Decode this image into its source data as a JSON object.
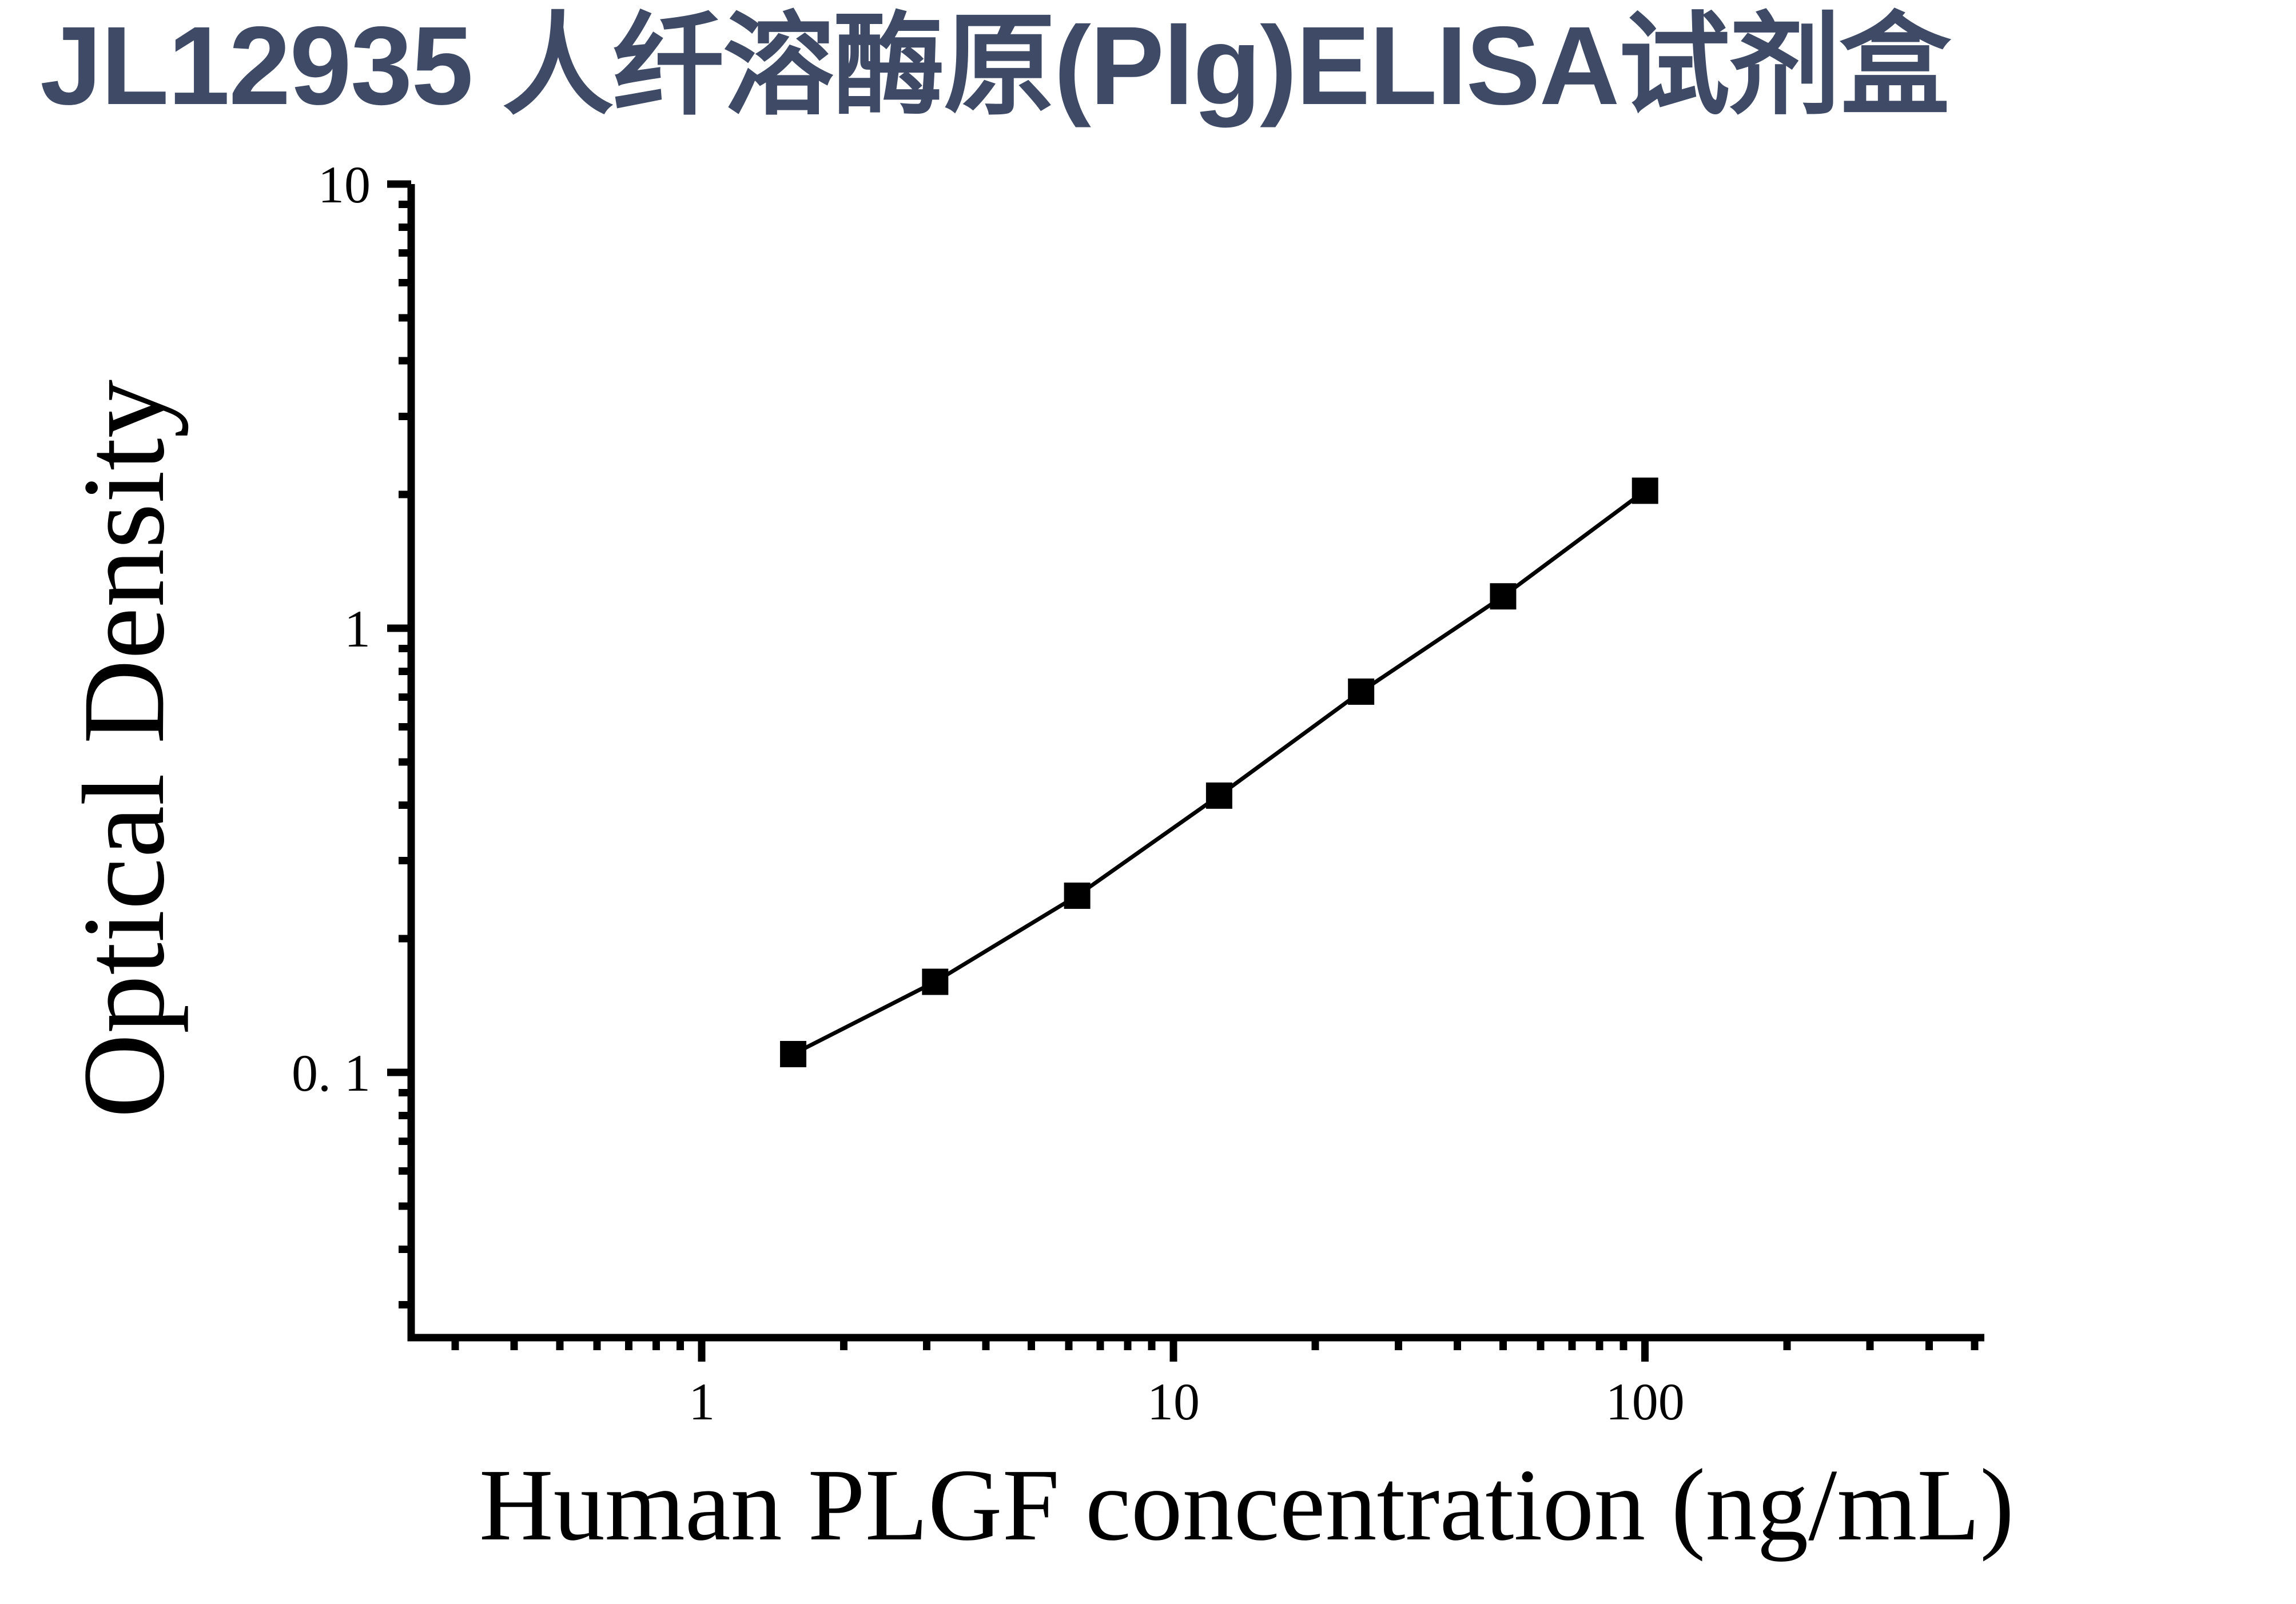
{
  "header": {
    "title": "JL12935 人纤溶酶原(Plg)ELISA试剂盒",
    "title_color": "#3e4a66"
  },
  "chart_data": {
    "type": "line",
    "subtype": "scatter-line-standard-curve",
    "xlabel": "Human PLGF concentration (ng/mL)",
    "ylabel": "Optical Density",
    "x_scale": "log",
    "y_scale": "log",
    "xlim": [
      0.242,
      524
    ],
    "ylim": [
      0.0253,
      10
    ],
    "grid": false,
    "legend_position": "none",
    "axis_color": "#000000",
    "x_major_ticks": [
      {
        "value": 1,
        "label": "1"
      },
      {
        "value": 10,
        "label": "10"
      },
      {
        "value": 100,
        "label": "100"
      }
    ],
    "y_major_ticks": [
      {
        "value": 10,
        "label": "10"
      },
      {
        "value": 1,
        "label": "1"
      },
      {
        "value": 0.1,
        "label": "0. 1"
      }
    ],
    "minor_ticks": "log-decades",
    "series": [
      {
        "name": "standard-curve",
        "marker": "filled-square",
        "color": "#000000",
        "points": [
          {
            "x": 1.5625,
            "y": 0.11
          },
          {
            "x": 3.125,
            "y": 0.16
          },
          {
            "x": 6.25,
            "y": 0.25
          },
          {
            "x": 12.5,
            "y": 0.42
          },
          {
            "x": 25,
            "y": 0.72
          },
          {
            "x": 50,
            "y": 1.18
          },
          {
            "x": 100,
            "y": 2.04
          }
        ]
      }
    ]
  }
}
